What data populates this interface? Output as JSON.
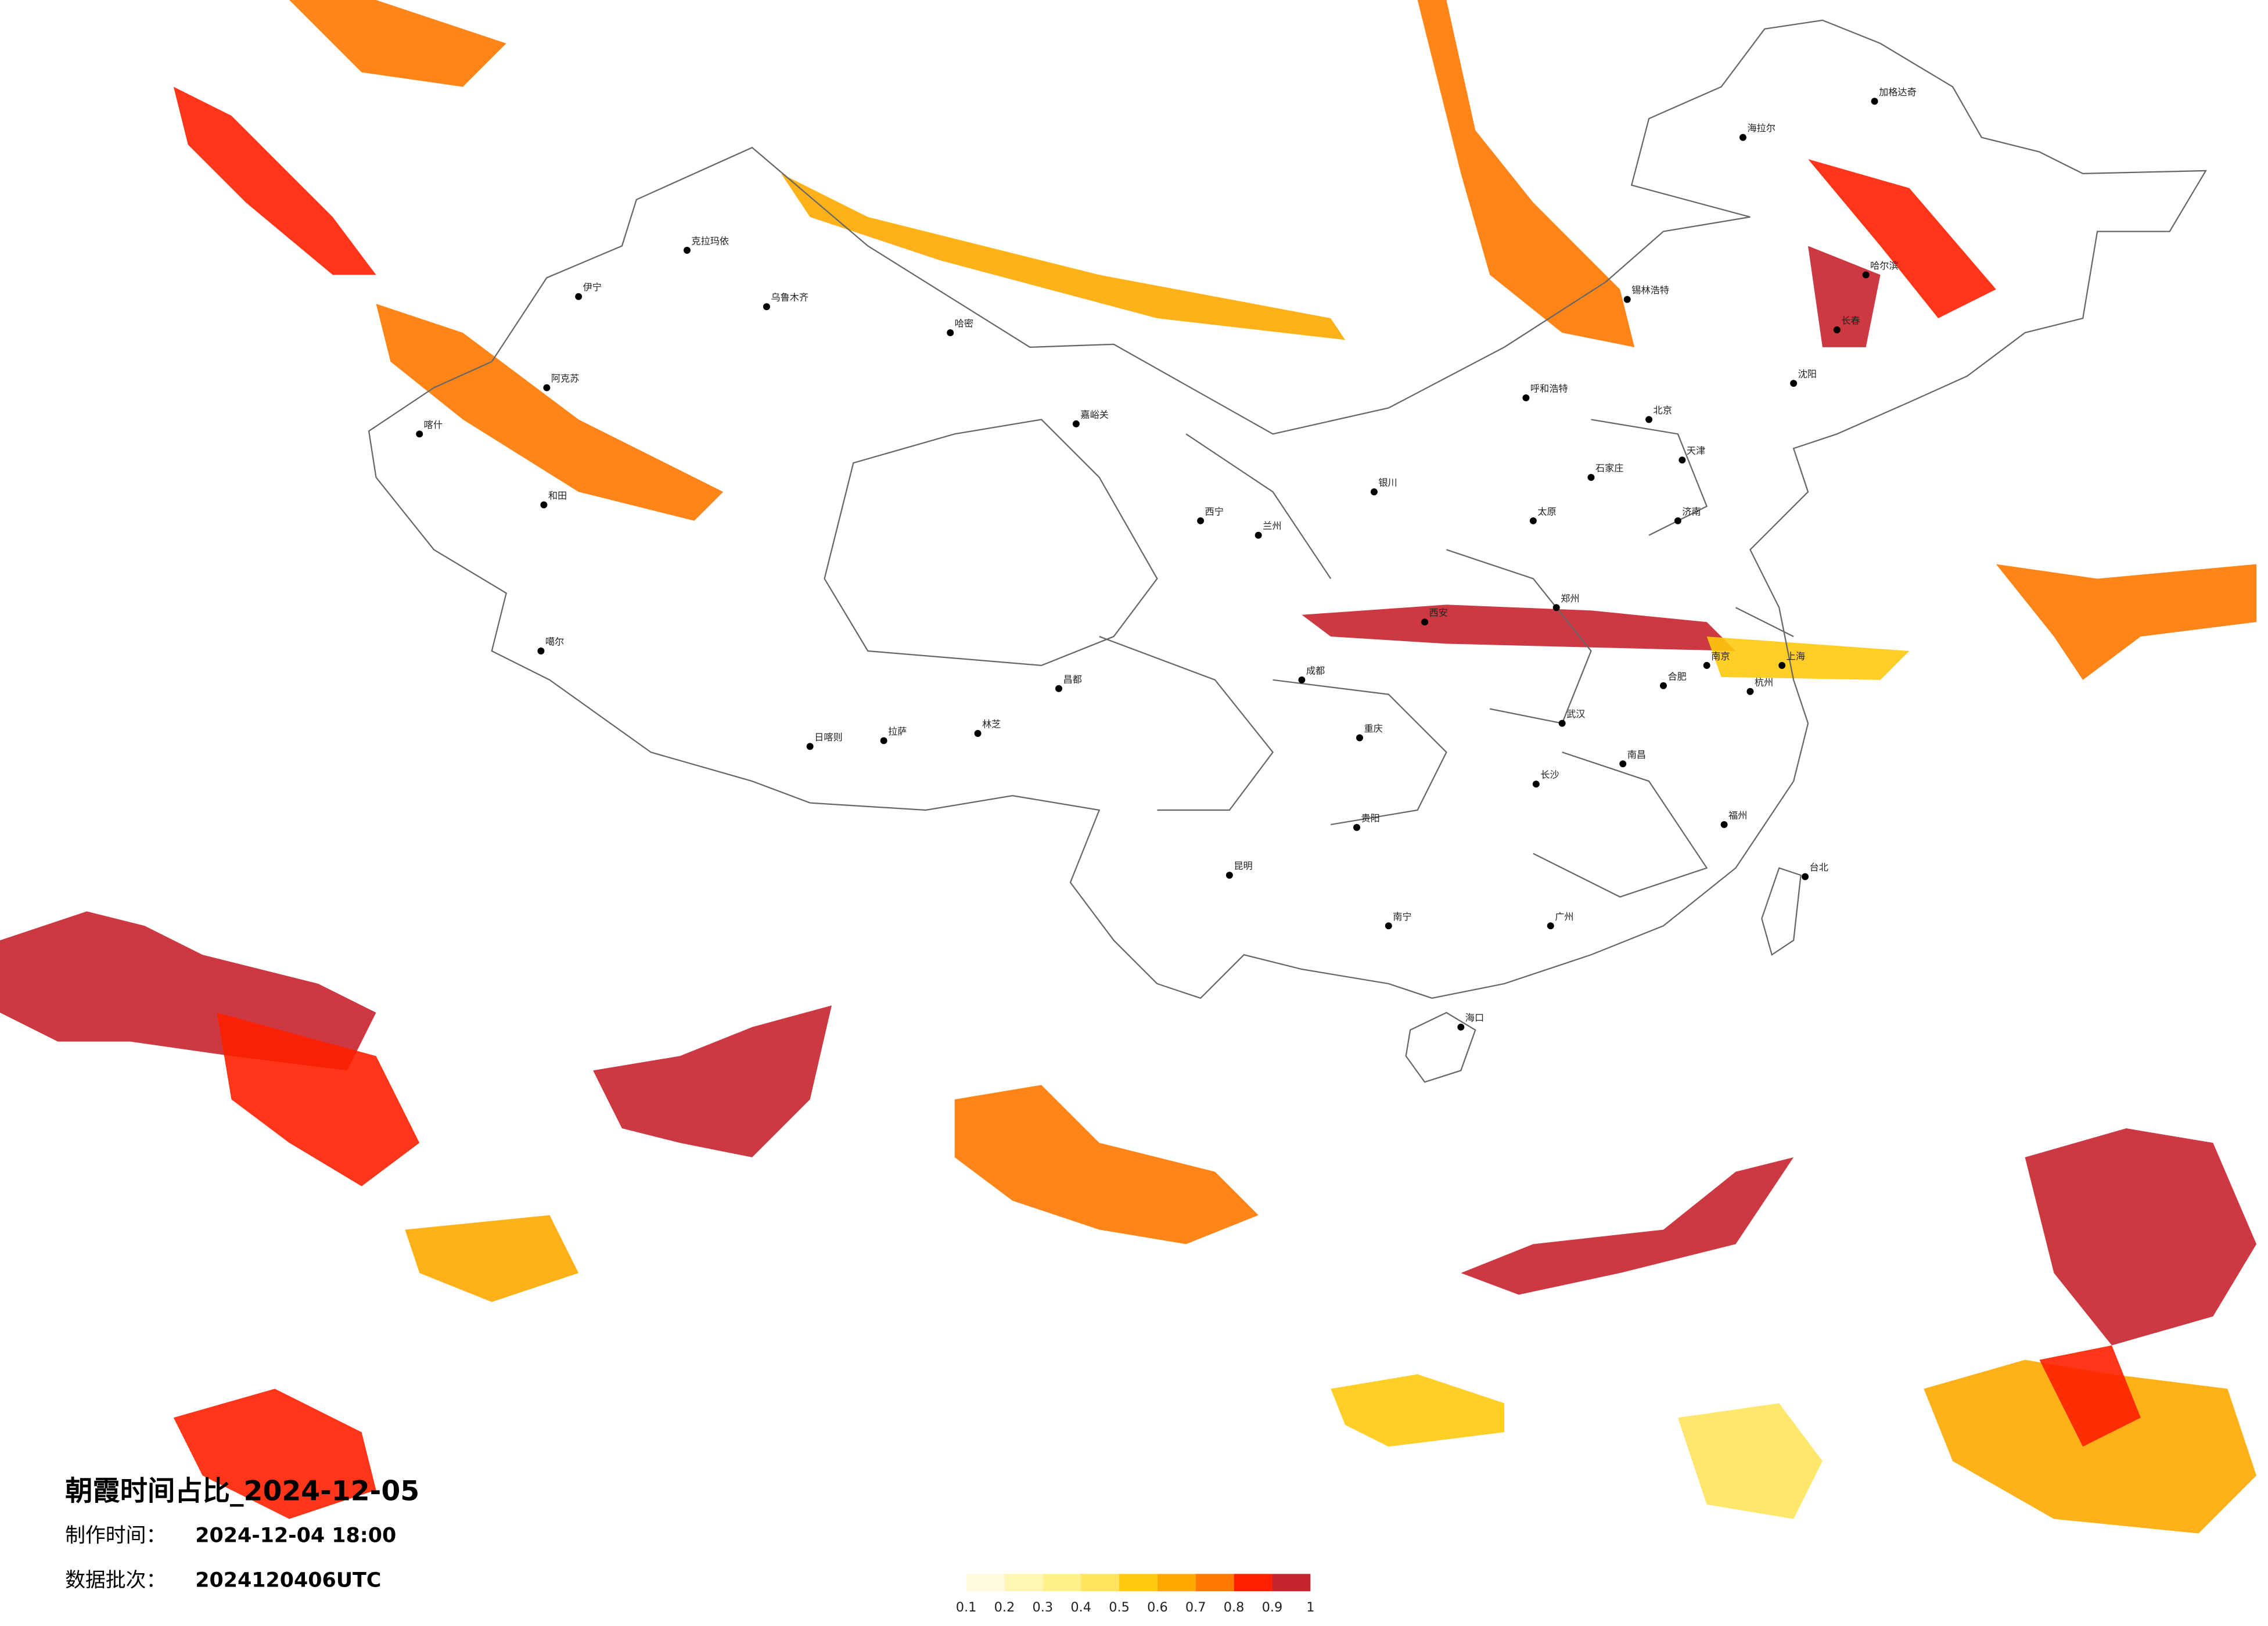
{
  "title": "朝霞时间占比_2024-12-05",
  "made_label": "制作时间：",
  "made_time": "2024-12-04 18:00",
  "batch_label": "数据批次：",
  "batch": "2024120406UTC",
  "legend": {
    "ticks": [
      0.1,
      0.2,
      0.3,
      0.4,
      0.5,
      0.6,
      0.7,
      0.8,
      0.9,
      1
    ],
    "colors": [
      "#fffbe0",
      "#fff6b5",
      "#fff08a",
      "#ffe45c",
      "#ffc90f",
      "#ffa800",
      "#ff7800",
      "#ff2000",
      "#c8242e"
    ]
  },
  "map": {
    "cities": [
      "加格达奇",
      "海拉尔",
      "哈尔滨",
      "长春",
      "沈阳",
      "锡林浩特",
      "呼和浩特",
      "北京",
      "天津",
      "石家庄",
      "太原",
      "济南",
      "郑州",
      "西安",
      "银川",
      "兰州",
      "西宁",
      "嘉峪关",
      "哈密",
      "乌鲁木齐",
      "克拉玛依",
      "伊宁",
      "阿克苏",
      "喀什",
      "和田",
      "噶尔",
      "日喀则",
      "拉萨",
      "林芝",
      "昌都",
      "成都",
      "重庆",
      "贵阳",
      "昆明",
      "南宁",
      "海口",
      "广州",
      "福州",
      "台北",
      "杭州",
      "上海",
      "南京",
      "合肥",
      "武汉",
      "长沙",
      "南昌"
    ]
  }
}
